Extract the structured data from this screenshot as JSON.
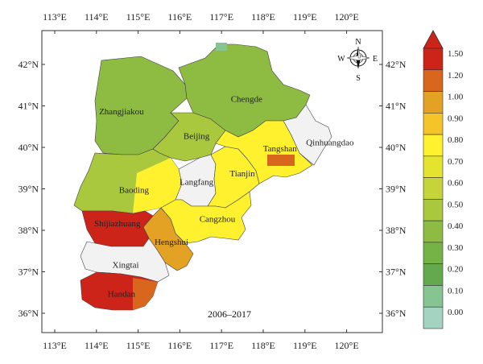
{
  "map": {
    "period": "2006–2017",
    "lon_ticks": [
      "113°E",
      "114°E",
      "115°E",
      "116°E",
      "117°E",
      "118°E",
      "119°E",
      "120°E"
    ],
    "lat_ticks": [
      "42°N",
      "41°N",
      "40°N",
      "39°N",
      "38°N",
      "37°N",
      "36°N"
    ],
    "cities": [
      {
        "name": "Zhangjiakou",
        "lon": 114.6,
        "lat": 40.8,
        "value_class": "0.40-0.50"
      },
      {
        "name": "Chengde",
        "lon": 117.6,
        "lat": 41.1,
        "value_class": "0.40-0.50"
      },
      {
        "name": "Beijing",
        "lon": 116.4,
        "lat": 40.2,
        "value_class": "0.50-0.60"
      },
      {
        "name": "Qinhuangdao",
        "lon": 119.6,
        "lat": 40.05,
        "value_class": "no data"
      },
      {
        "name": "Tangshan",
        "lon": 118.4,
        "lat": 39.9,
        "value_class": "0.80-0.90"
      },
      {
        "name": "Tianjin",
        "lon": 117.5,
        "lat": 39.3,
        "value_class": "0.80-0.90"
      },
      {
        "name": "Langfang",
        "lon": 116.4,
        "lat": 39.1,
        "value_class": "no data"
      },
      {
        "name": "Baoding",
        "lon": 114.9,
        "lat": 38.9,
        "value_class": "0.50-0.60"
      },
      {
        "name": "Cangzhou",
        "lon": 116.9,
        "lat": 38.2,
        "value_class": "0.80-0.90"
      },
      {
        "name": "Shijiazhuang",
        "lon": 114.5,
        "lat": 38.1,
        "value_class": "1.50+"
      },
      {
        "name": "Hengshui",
        "lon": 115.8,
        "lat": 37.65,
        "value_class": "1.00-1.20"
      },
      {
        "name": "Xingtai",
        "lon": 114.7,
        "lat": 37.1,
        "value_class": "no data"
      },
      {
        "name": "Handan",
        "lon": 114.6,
        "lat": 36.4,
        "value_class": "1.50+"
      }
    ],
    "compass": {
      "n": "N",
      "s": "S",
      "e": "E",
      "w": "W",
      "icon": "compass-rose-icon"
    }
  },
  "legend": {
    "labels": [
      "1.50",
      "1.20",
      "1.00",
      "0.90",
      "0.80",
      "0.70",
      "0.60",
      "0.50",
      "0.40",
      "0.30",
      "0.20",
      "0.10",
      "0.00"
    ],
    "colors": [
      "#cc2418",
      "#d8661d",
      "#e3a224",
      "#f4c429",
      "#fff12e",
      "#e4e32d",
      "#c4d43a",
      "#a9c83d",
      "#8ebb42",
      "#75b347",
      "#65a94f",
      "#86c491",
      "#a5d3c2"
    ]
  }
}
